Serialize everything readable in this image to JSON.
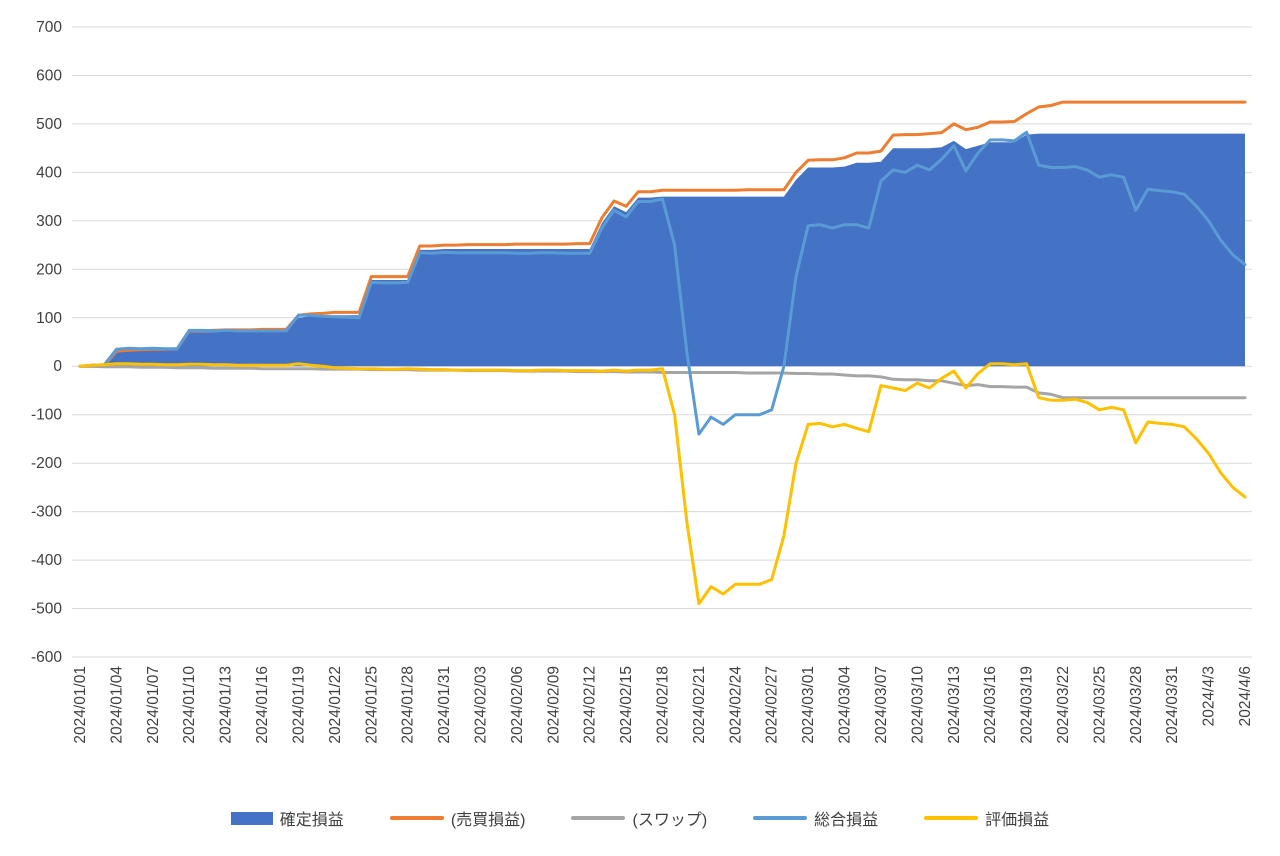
{
  "chart_data": {
    "type": "area",
    "title": "",
    "xlabel": "",
    "ylabel": "",
    "ylim": [
      -600,
      700
    ],
    "y_tick_step": 100,
    "grid": "horizontal",
    "legend_position": "bottom",
    "n_points": 97,
    "x_tick_interval_days": 3,
    "colors": {
      "axis_text": "#404040",
      "gridline": "#D9D9D9",
      "background": "#FFFFFF"
    },
    "y_ticks": [
      700,
      600,
      500,
      400,
      300,
      200,
      100,
      0,
      -100,
      -200,
      -300,
      -400,
      -500,
      -600
    ],
    "x_tick_labels": [
      "2024/01/01",
      "2024/01/04",
      "2024/01/07",
      "2024/01/10",
      "2024/01/13",
      "2024/01/16",
      "2024/01/19",
      "2024/01/22",
      "2024/01/25",
      "2024/01/28",
      "2024/01/31",
      "2024/02/03",
      "2024/02/06",
      "2024/02/09",
      "2024/02/12",
      "2024/02/15",
      "2024/02/18",
      "2024/02/21",
      "2024/02/24",
      "2024/02/27",
      "2024/03/01",
      "2024/03/04",
      "2024/03/07",
      "2024/03/10",
      "2024/03/13",
      "2024/03/16",
      "2024/03/19",
      "2024/03/22",
      "2024/03/25",
      "2024/03/28",
      "2024/03/31",
      "2024/4/3",
      "2024/4/6"
    ],
    "series": [
      {
        "key": "confirmed-pl",
        "name": "確定損益",
        "type": "area",
        "color": "#4472C4",
        "values": [
          0,
          0,
          0,
          30,
          32,
          32,
          33,
          33,
          33,
          70,
          70,
          70,
          71,
          71,
          71,
          71,
          71,
          71,
          100,
          103,
          103,
          105,
          105,
          105,
          178,
          178,
          178,
          178,
          240,
          240,
          242,
          242,
          242,
          242,
          242,
          242,
          242,
          242,
          242,
          242,
          242,
          242,
          242,
          295,
          330,
          318,
          348,
          348,
          350,
          350,
          350,
          350,
          350,
          350,
          350,
          350,
          350,
          350,
          350,
          385,
          410,
          410,
          410,
          412,
          420,
          420,
          422,
          450,
          450,
          450,
          450,
          452,
          465,
          448,
          455,
          462,
          462,
          462,
          478,
          480,
          480,
          480,
          480,
          480,
          480,
          480,
          480,
          480,
          480,
          480,
          480,
          480,
          480,
          480,
          480,
          480,
          480
        ]
      },
      {
        "key": "trading-pl",
        "name": "(売買損益)",
        "type": "line",
        "color": "#ED7D31",
        "values": [
          0,
          0,
          1,
          31,
          33,
          34,
          35,
          35,
          36,
          73,
          73,
          74,
          75,
          75,
          75,
          76,
          76,
          76,
          105,
          108,
          109,
          111,
          111,
          111,
          185,
          185,
          185,
          185,
          248,
          248,
          250,
          250,
          251,
          251,
          251,
          251,
          252,
          252,
          252,
          252,
          252,
          253,
          253,
          306,
          341,
          330,
          360,
          360,
          363,
          363,
          363,
          363,
          363,
          363,
          363,
          364,
          364,
          364,
          364,
          400,
          425,
          426,
          426,
          430,
          440,
          440,
          444,
          477,
          478,
          478,
          480,
          482,
          500,
          488,
          493,
          504,
          504,
          505,
          521,
          535,
          538,
          545,
          545,
          545,
          545,
          545,
          545,
          545,
          545,
          545,
          545,
          545,
          545,
          545,
          545,
          545,
          545
        ]
      },
      {
        "key": "swap",
        "name": "(スワップ)",
        "type": "line",
        "color": "#A5A5A5",
        "values": [
          0,
          0,
          -1,
          -1,
          -1,
          -2,
          -2,
          -2,
          -3,
          -3,
          -3,
          -4,
          -4,
          -4,
          -4,
          -5,
          -5,
          -5,
          -5,
          -5,
          -6,
          -6,
          -6,
          -6,
          -7,
          -7,
          -7,
          -7,
          -8,
          -8,
          -8,
          -8,
          -9,
          -9,
          -9,
          -9,
          -10,
          -10,
          -10,
          -10,
          -10,
          -11,
          -11,
          -11,
          -11,
          -12,
          -12,
          -12,
          -13,
          -13,
          -13,
          -13,
          -13,
          -13,
          -13,
          -14,
          -14,
          -14,
          -14,
          -15,
          -15,
          -16,
          -16,
          -18,
          -20,
          -20,
          -22,
          -27,
          -28,
          -28,
          -30,
          -30,
          -35,
          -40,
          -38,
          -42,
          -42,
          -43,
          -43,
          -55,
          -58,
          -65,
          -65,
          -65,
          -65,
          -65,
          -65,
          -65,
          -65,
          -65,
          -65,
          -65,
          -65,
          -65,
          -65,
          -65,
          -65
        ]
      },
      {
        "key": "total-pl",
        "name": "総合損益",
        "type": "line",
        "color": "#5B9BD5",
        "values": [
          0,
          2,
          3,
          35,
          37,
          36,
          37,
          36,
          36,
          74,
          74,
          73,
          74,
          73,
          73,
          73,
          73,
          73,
          105,
          105,
          103,
          102,
          101,
          100,
          173,
          172,
          172,
          173,
          234,
          233,
          235,
          234,
          234,
          234,
          234,
          234,
          233,
          233,
          234,
          234,
          233,
          233,
          233,
          285,
          322,
          308,
          340,
          340,
          345,
          250,
          30,
          -140,
          -105,
          -120,
          -100,
          -100,
          -100,
          -90,
          0,
          185,
          290,
          292,
          285,
          292,
          292,
          285,
          382,
          405,
          400,
          415,
          405,
          427,
          455,
          403,
          440,
          467,
          467,
          465,
          483,
          415,
          410,
          410,
          412,
          405,
          390,
          395,
          390,
          322,
          365,
          362,
          360,
          355,
          330,
          300,
          260,
          230,
          210
        ]
      },
      {
        "key": "valuation-pl",
        "name": "評価損益",
        "type": "line",
        "color": "#FFC000",
        "values": [
          0,
          2,
          3,
          5,
          5,
          4,
          4,
          3,
          3,
          4,
          4,
          3,
          3,
          2,
          2,
          2,
          2,
          2,
          5,
          2,
          0,
          -3,
          -4,
          -5,
          -5,
          -6,
          -6,
          -5,
          -6,
          -7,
          -7,
          -8,
          -8,
          -8,
          -8,
          -8,
          -9,
          -9,
          -8,
          -8,
          -9,
          -9,
          -9,
          -10,
          -8,
          -10,
          -8,
          -8,
          -5,
          -100,
          -320,
          -490,
          -455,
          -470,
          -450,
          -450,
          -450,
          -440,
          -350,
          -200,
          -120,
          -118,
          -125,
          -120,
          -128,
          -135,
          -40,
          -45,
          -50,
          -35,
          -45,
          -25,
          -10,
          -45,
          -15,
          5,
          5,
          3,
          5,
          -65,
          -70,
          -70,
          -68,
          -75,
          -90,
          -85,
          -90,
          -158,
          -115,
          -118,
          -120,
          -125,
          -150,
          -180,
          -220,
          -250,
          -270
        ]
      }
    ]
  }
}
